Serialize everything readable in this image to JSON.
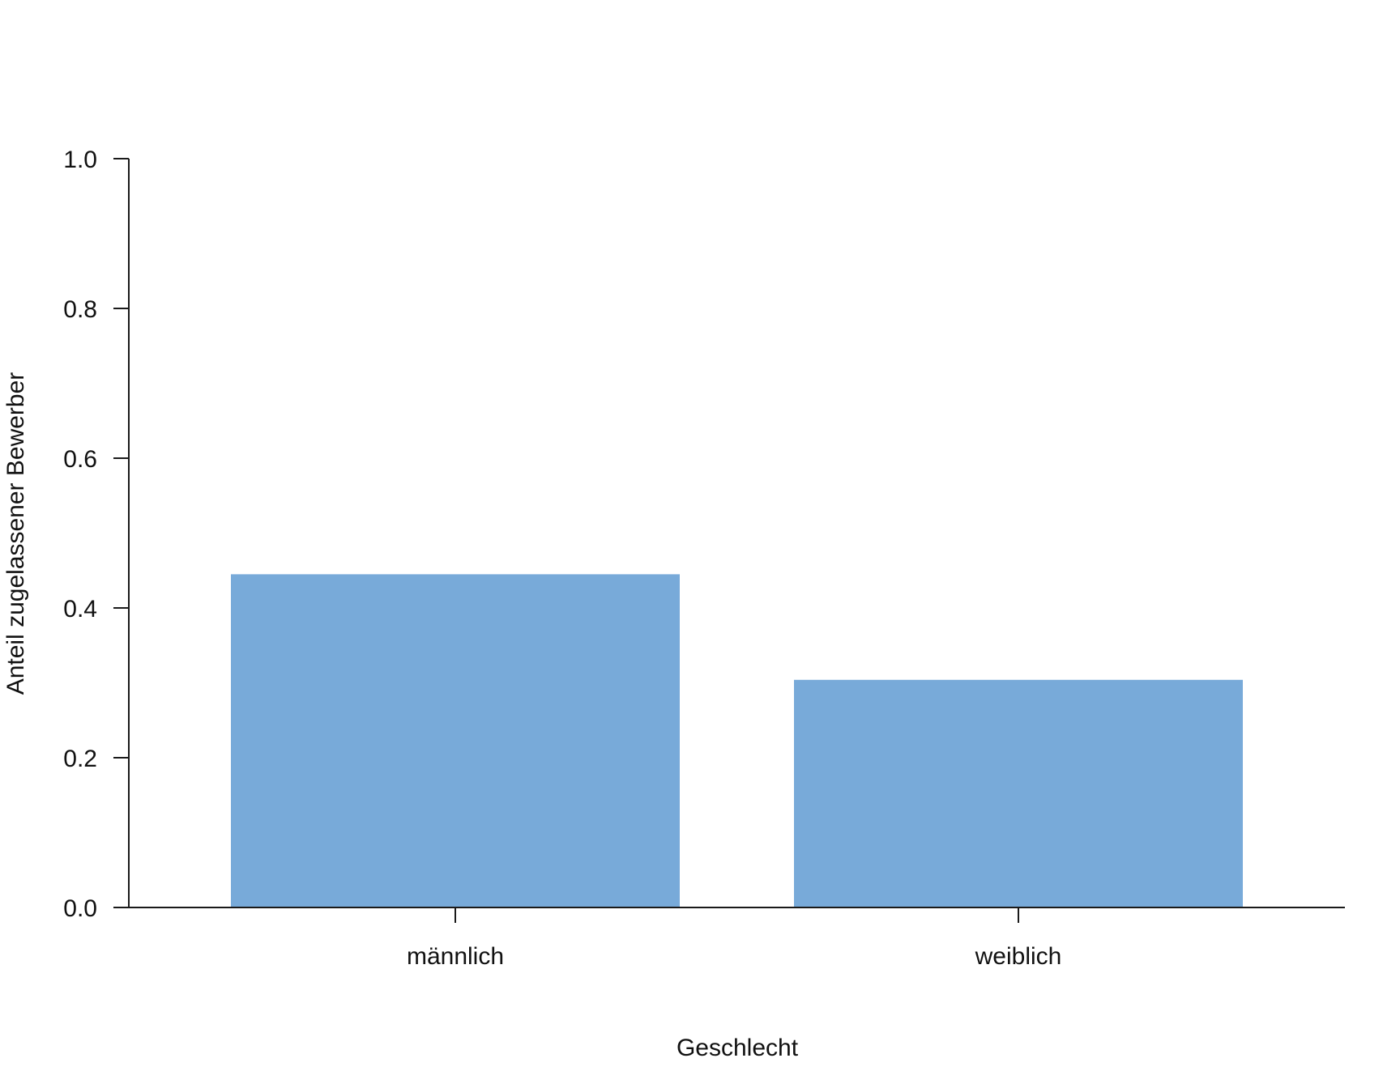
{
  "chart_data": {
    "type": "bar",
    "categories": [
      "männlich",
      "weiblich"
    ],
    "values": [
      0.445,
      0.304
    ],
    "xlabel": "Geschlecht",
    "ylabel": "Anteil zugelassener Bewerber",
    "ylim": [
      0,
      1
    ],
    "yticks": [
      "0.0",
      "0.2",
      "0.4",
      "0.6",
      "0.8",
      "1.0"
    ],
    "grid": false,
    "legend": "none",
    "bar_color": "#78aad9",
    "axis_color": "#1a1a1a"
  }
}
